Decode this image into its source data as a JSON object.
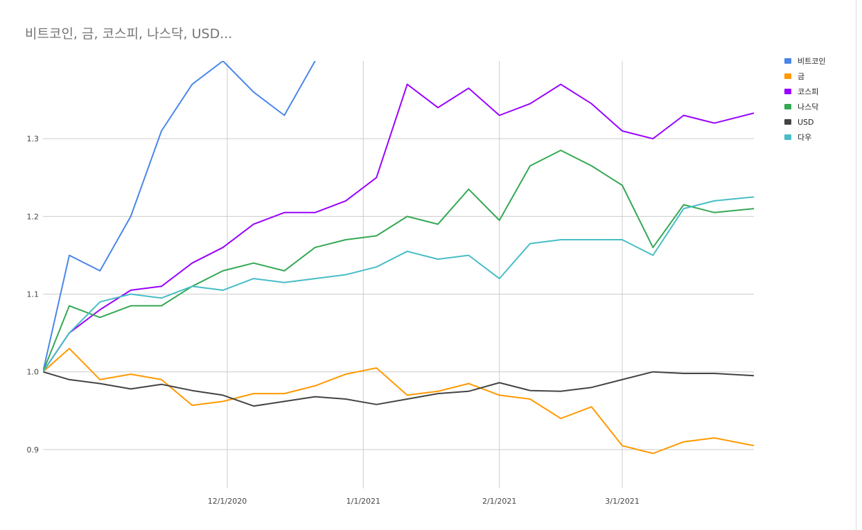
{
  "title": "비트코인, 금, 코스피, 나스닥, USD...",
  "chart_data": {
    "type": "line",
    "title": "비트코인, 금, 코스피, 나스닥, USD...",
    "xlabel": "",
    "ylabel": "",
    "ylim": [
      0.85,
      1.4
    ],
    "xlim": [
      "2020-10-20",
      "2021-03-31"
    ],
    "grid": true,
    "legend": "right",
    "x_ticks": [
      "12/1/2020",
      "1/1/2021",
      "2/1/2021",
      "3/1/2021"
    ],
    "y_ticks": [
      "0.9",
      "1.0",
      "1.1",
      "1.2",
      "1.3"
    ],
    "x": [
      "2020-10-20",
      "2020-10-26",
      "2020-11-02",
      "2020-11-09",
      "2020-11-16",
      "2020-11-23",
      "2020-11-30",
      "2020-12-07",
      "2020-12-14",
      "2020-12-21",
      "2020-12-28",
      "2021-01-04",
      "2021-01-11",
      "2021-01-18",
      "2021-01-25",
      "2021-02-01",
      "2021-02-08",
      "2021-02-15",
      "2021-02-22",
      "2021-03-01",
      "2021-03-08",
      "2021-03-15",
      "2021-03-22",
      "2021-03-31"
    ],
    "series": [
      {
        "name": "비트코인",
        "color": "#4a86e8",
        "values": [
          1.0,
          1.15,
          1.13,
          1.2,
          1.31,
          1.37,
          1.4,
          1.36,
          1.33,
          1.4,
          null,
          null,
          null,
          null,
          null,
          null,
          null,
          null,
          null,
          null,
          null,
          null,
          null,
          null
        ]
      },
      {
        "name": "금",
        "color": "#ff9900",
        "values": [
          1.0,
          1.03,
          0.99,
          0.997,
          0.99,
          0.957,
          0.962,
          0.972,
          0.972,
          0.982,
          0.997,
          1.005,
          0.97,
          0.975,
          0.985,
          0.97,
          0.965,
          0.94,
          0.955,
          0.905,
          0.895,
          0.91,
          0.915,
          0.905
        ]
      },
      {
        "name": "코스피",
        "color": "#9900ff",
        "values": [
          1.0,
          1.05,
          1.08,
          1.105,
          1.11,
          1.14,
          1.16,
          1.19,
          1.205,
          1.205,
          1.22,
          1.25,
          1.37,
          1.34,
          1.365,
          1.33,
          1.345,
          1.37,
          1.345,
          1.31,
          1.3,
          1.33,
          1.32,
          1.333
        ]
      },
      {
        "name": "나스닥",
        "color": "#34a853",
        "values": [
          1.0,
          1.085,
          1.07,
          1.085,
          1.085,
          1.11,
          1.13,
          1.14,
          1.13,
          1.16,
          1.17,
          1.175,
          1.2,
          1.19,
          1.235,
          1.195,
          1.265,
          1.285,
          1.265,
          1.24,
          1.16,
          1.215,
          1.205,
          1.21
        ]
      },
      {
        "name": "USD",
        "color": "#434343",
        "values": [
          1.0,
          0.99,
          0.985,
          0.978,
          0.984,
          0.976,
          0.97,
          0.956,
          0.962,
          0.968,
          0.965,
          0.958,
          0.965,
          0.972,
          0.975,
          0.986,
          0.976,
          0.975,
          0.98,
          0.99,
          1.0,
          0.998,
          0.998,
          0.995
        ]
      },
      {
        "name": "다우",
        "color": "#46bdc6",
        "values": [
          1.0,
          1.05,
          1.09,
          1.1,
          1.095,
          1.11,
          1.105,
          1.12,
          1.115,
          1.12,
          1.125,
          1.135,
          1.155,
          1.145,
          1.15,
          1.12,
          1.165,
          1.17,
          1.17,
          1.17,
          1.15,
          1.21,
          1.22,
          1.225
        ]
      }
    ]
  }
}
